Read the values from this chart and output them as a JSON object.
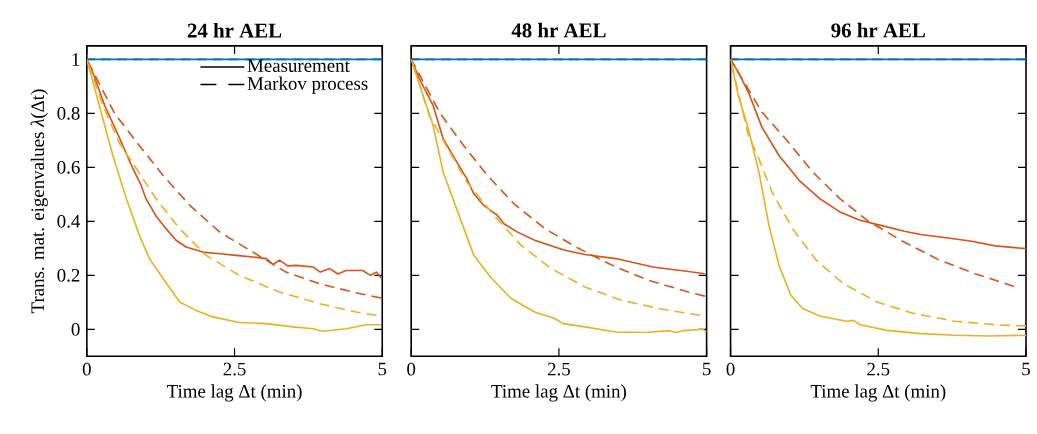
{
  "chart_data": [
    {
      "type": "line",
      "title": "24 hr AEL",
      "xlabel": "Time lag Δt (min)",
      "ylabel": "Trans. mat. eigenvalues *λ*(Δt)",
      "xlim": [
        0,
        5
      ],
      "ylim": [
        -0.1,
        1.05
      ],
      "xticks": [
        0,
        2.5,
        5
      ],
      "yticks": [
        0,
        0.2,
        0.4,
        0.6,
        0.8,
        1
      ],
      "annotations": [
        "Measurement",
        "Markov process"
      ],
      "series": [
        {
          "color": "#0072bd",
          "line_style": "solid",
          "x": [
            0,
            5
          ],
          "values": [
            1,
            1
          ]
        },
        {
          "color": "#0072bd",
          "line_style": "dashed",
          "x": [
            0,
            5
          ],
          "values": [
            1,
            1
          ]
        },
        {
          "color": "#d95319",
          "line_style": "solid",
          "x": [
            0,
            0.12,
            0.3,
            0.55,
            0.78,
            0.92,
            1.0,
            1.17,
            1.34,
            1.51,
            1.68,
            1.96,
            2.25,
            2.53,
            2.81,
            3.04,
            3.15,
            3.26,
            3.4,
            3.54,
            3.83,
            3.95,
            4.11,
            4.25,
            4.39,
            4.67,
            4.8,
            4.9,
            4.98
          ],
          "values": [
            1,
            0.94,
            0.83,
            0.71,
            0.595,
            0.533,
            0.484,
            0.42,
            0.373,
            0.33,
            0.305,
            0.286,
            0.28,
            0.274,
            0.268,
            0.262,
            0.24,
            0.256,
            0.235,
            0.237,
            0.231,
            0.212,
            0.225,
            0.205,
            0.218,
            0.218,
            0.2,
            0.212,
            0.19
          ]
        },
        {
          "color": "#d95319",
          "line_style": "dashed",
          "x": [
            0,
            0.47,
            0.89,
            1.29,
            1.74,
            2.25,
            2.81,
            3.37,
            3.94,
            4.5,
            4.98
          ],
          "values": [
            1,
            0.8,
            0.68,
            0.57,
            0.46,
            0.36,
            0.286,
            0.212,
            0.169,
            0.138,
            0.116
          ]
        },
        {
          "color": "#edb120",
          "line_style": "solid",
          "x": [
            0,
            0.21,
            0.44,
            0.67,
            0.89,
            1.06,
            1.29,
            1.57,
            1.85,
            2.13,
            2.58,
            3.04,
            3.49,
            3.83,
            3.99,
            4.39,
            4.73,
            4.98
          ],
          "values": [
            1,
            0.83,
            0.644,
            0.484,
            0.348,
            0.262,
            0.188,
            0.101,
            0.07,
            0.046,
            0.025,
            0.021,
            0.009,
            0.002,
            -0.007,
            0.002,
            0.017,
            0.017
          ]
        },
        {
          "color": "#edb120",
          "line_style": "dashed",
          "x": [
            0,
            0.27,
            0.55,
            0.84,
            1.17,
            1.57,
            2.02,
            2.58,
            3.26,
            3.94,
            4.56,
            4.9
          ],
          "values": [
            1,
            0.83,
            0.69,
            0.595,
            0.484,
            0.373,
            0.274,
            0.2,
            0.138,
            0.095,
            0.064,
            0.052
          ]
        }
      ]
    },
    {
      "type": "line",
      "title": "48 hr AEL",
      "xlabel": "Time lag Δt (min)",
      "xlim": [
        0,
        5
      ],
      "ylim": [
        -0.1,
        1.05
      ],
      "xticks": [
        0,
        2.5,
        5
      ],
      "yticks": [
        0,
        0.2,
        0.4,
        0.6,
        0.8,
        1
      ],
      "tick_labels": "x",
      "series": [
        {
          "color": "#0072bd",
          "line_style": "solid",
          "x": [
            0,
            5
          ],
          "values": [
            1,
            1
          ]
        },
        {
          "color": "#0072bd",
          "line_style": "dashed",
          "x": [
            0,
            5
          ],
          "values": [
            1,
            1
          ]
        },
        {
          "color": "#d95319",
          "line_style": "solid",
          "x": [
            0,
            0.14,
            0.37,
            0.54,
            0.77,
            0.94,
            1.06,
            1.23,
            1.46,
            1.57,
            1.8,
            2.09,
            2.43,
            2.6,
            2.94,
            3.46,
            4.09,
            4.66,
            4.97
          ],
          "values": [
            1,
            0.928,
            0.83,
            0.706,
            0.62,
            0.558,
            0.502,
            0.459,
            0.422,
            0.391,
            0.36,
            0.33,
            0.305,
            0.293,
            0.277,
            0.262,
            0.231,
            0.215,
            0.206
          ]
        },
        {
          "color": "#d95319",
          "line_style": "dashed",
          "x": [
            0,
            0.49,
            0.89,
            1.29,
            1.74,
            2.26,
            2.83,
            3.46,
            4.03,
            4.69,
            4.97
          ],
          "values": [
            1,
            0.8,
            0.68,
            0.57,
            0.465,
            0.373,
            0.3,
            0.231,
            0.181,
            0.138,
            0.123
          ]
        },
        {
          "color": "#edb120",
          "line_style": "solid",
          "x": [
            0,
            0.2,
            0.37,
            0.54,
            0.83,
            1.06,
            1.34,
            1.69,
            2.09,
            2.43,
            2.57,
            2.94,
            3.46,
            3.97,
            4.37,
            4.49,
            4.6,
            4.94,
            5
          ],
          "values": [
            1,
            0.867,
            0.756,
            0.583,
            0.41,
            0.274,
            0.194,
            0.114,
            0.064,
            0.04,
            0.021,
            0.009,
            -0.01,
            -0.012,
            -0.005,
            -0.012,
            -0.005,
            0,
            -0.01
          ]
        },
        {
          "color": "#edb120",
          "line_style": "dashed",
          "x": [
            0,
            0.31,
            0.49,
            0.94,
            1.4,
            1.86,
            2.37,
            2.94,
            3.57,
            4.26,
            4.89
          ],
          "values": [
            1,
            0.79,
            0.72,
            0.546,
            0.422,
            0.311,
            0.225,
            0.157,
            0.107,
            0.074,
            0.052
          ]
        }
      ]
    },
    {
      "type": "line",
      "title": "96 hr AEL",
      "xlabel": "Time lag Δt (min)",
      "xlim": [
        0,
        5
      ],
      "ylim": [
        -0.1,
        1.05
      ],
      "xticks": [
        0,
        2.5,
        5
      ],
      "yticks": [
        0,
        0.2,
        0.4,
        0.6,
        0.8,
        1
      ],
      "tick_labels": "x",
      "series": [
        {
          "color": "#0072bd",
          "line_style": "solid",
          "x": [
            0,
            5
          ],
          "values": [
            1,
            1
          ]
        },
        {
          "color": "#0072bd",
          "line_style": "dashed",
          "x": [
            0,
            5
          ],
          "values": [
            1,
            1
          ]
        },
        {
          "color": "#d95319",
          "line_style": "solid",
          "x": [
            0,
            0.13,
            0.3,
            0.53,
            0.82,
            1.16,
            1.51,
            1.85,
            2.19,
            2.54,
            2.94,
            3.22,
            3.68,
            4.08,
            4.48,
            5
          ],
          "values": [
            1,
            0.953,
            0.879,
            0.749,
            0.644,
            0.552,
            0.484,
            0.435,
            0.404,
            0.385,
            0.363,
            0.351,
            0.338,
            0.326,
            0.309,
            0.299
          ]
        },
        {
          "color": "#d95319",
          "line_style": "dashed",
          "x": [
            0,
            0.53,
            0.93,
            1.39,
            1.85,
            2.31,
            2.88,
            3.51,
            4.14,
            4.8
          ],
          "values": [
            1,
            0.805,
            0.706,
            0.583,
            0.484,
            0.404,
            0.33,
            0.259,
            0.206,
            0.159
          ]
        },
        {
          "color": "#edb120",
          "line_style": "solid",
          "x": [
            0,
            0.13,
            0.3,
            0.48,
            0.65,
            0.82,
            1.02,
            1.22,
            1.51,
            1.96,
            2.08,
            2.19,
            2.65,
            3.22,
            3.8,
            4.37,
            5
          ],
          "values": [
            1,
            0.867,
            0.743,
            0.583,
            0.385,
            0.237,
            0.126,
            0.077,
            0.049,
            0.03,
            0.033,
            0.017,
            -0.004,
            -0.016,
            -0.022,
            -0.025,
            -0.022
          ]
        },
        {
          "color": "#edb120",
          "line_style": "dashed",
          "x": [
            0,
            0.3,
            0.48,
            0.7,
            1.05,
            1.45,
            1.91,
            2.48,
            3.11,
            3.8,
            4.48,
            5
          ],
          "values": [
            1,
            0.72,
            0.632,
            0.509,
            0.373,
            0.256,
            0.169,
            0.101,
            0.058,
            0.03,
            0.017,
            0.012
          ]
        }
      ]
    }
  ]
}
